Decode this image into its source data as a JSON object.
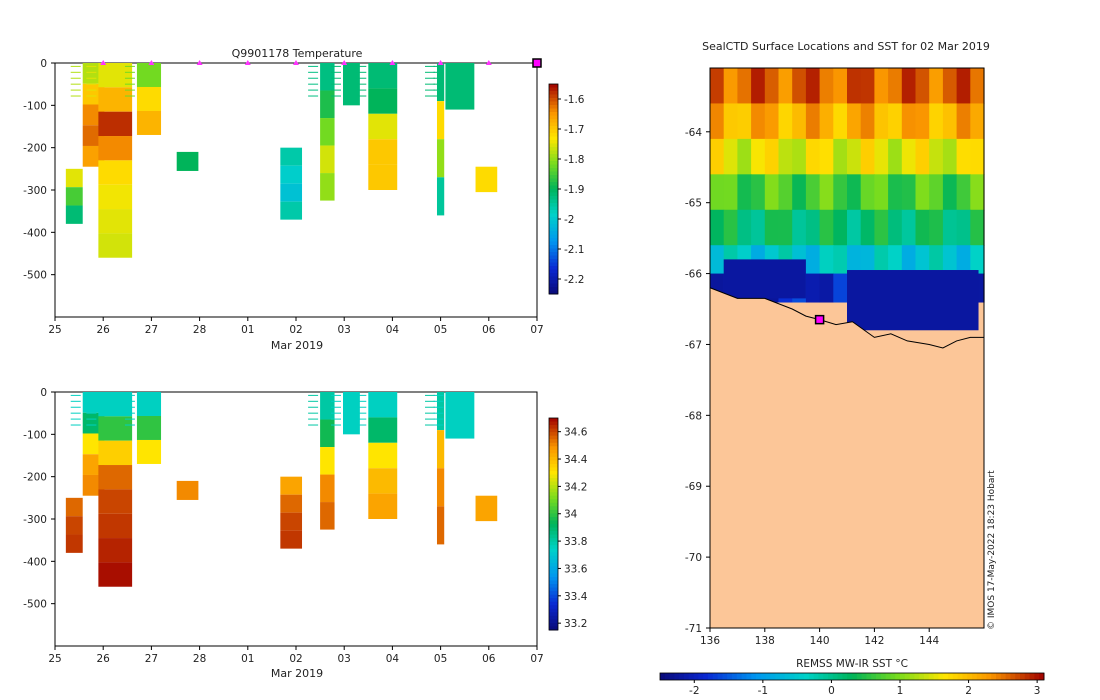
{
  "chart_data": [
    {
      "type": "heatmap",
      "title": "Q9901178  Temperature",
      "xlabel": "Mar 2019",
      "ylabel": "",
      "x_ticks": [
        "25",
        "26",
        "27",
        "28",
        "01",
        "02",
        "03",
        "04",
        "05",
        "06",
        "07"
      ],
      "x_range_days": [
        0,
        10
      ],
      "y_ticks": [
        0,
        -100,
        -200,
        -300,
        -400,
        -500
      ],
      "ylim": [
        -600,
        0
      ],
      "colorbar": {
        "ticks": [
          -1.6,
          -1.7,
          -1.8,
          -1.9,
          -2,
          -2.1,
          -2.2
        ],
        "range": [
          -2.25,
          -1.55
        ]
      },
      "surface_markers_day": [
        1,
        2,
        3,
        4,
        5,
        6,
        7,
        8,
        9,
        10
      ],
      "current_location_day": 10,
      "profiles": [
        {
          "day": 0.4,
          "width": 0.35,
          "depth": 380,
          "top": 250,
          "values": [
            -1.75,
            -1.85,
            -1.92
          ]
        },
        {
          "day": 0.8,
          "width": 0.45,
          "depth": 245,
          "top": 0,
          "values": [
            -1.78,
            -1.7,
            -1.64,
            -1.62,
            -1.66
          ]
        },
        {
          "day": 1.25,
          "width": 0.7,
          "depth": 460,
          "top": 0,
          "values": [
            -1.75,
            -1.68,
            -1.58,
            -1.64,
            -1.72,
            -1.74,
            -1.75,
            -1.76
          ]
        },
        {
          "day": 1.95,
          "width": 0.5,
          "depth": 170,
          "top": 0,
          "values": [
            -1.82,
            -1.72,
            -1.68
          ]
        },
        {
          "day": 2.75,
          "width": 0.45,
          "depth": 255,
          "top": 210,
          "values": [
            -1.9
          ]
        },
        {
          "day": 4.9,
          "width": 0.45,
          "depth": 370,
          "top": 200,
          "values": [
            -1.96,
            -1.99,
            -2.01,
            -1.96
          ]
        },
        {
          "day": 5.65,
          "width": 0.3,
          "depth": 325,
          "top": 0,
          "values": [
            -1.93,
            -1.88,
            -1.82,
            -1.76,
            -1.8
          ]
        },
        {
          "day": 6.15,
          "width": 0.35,
          "depth": 100,
          "top": 0,
          "values": [
            -1.92
          ]
        },
        {
          "day": 6.8,
          "width": 0.6,
          "depth": 300,
          "top": 0,
          "values": [
            -1.92,
            -1.9,
            -1.75,
            -1.7,
            -1.7
          ]
        },
        {
          "day": 8.0,
          "width": 0.15,
          "depth": 360,
          "top": 0,
          "values": [
            -1.92,
            -1.72,
            -1.8,
            -1.95
          ]
        },
        {
          "day": 8.4,
          "width": 0.6,
          "depth": 110,
          "top": 0,
          "values": [
            -1.92
          ]
        },
        {
          "day": 8.95,
          "width": 0.45,
          "depth": 305,
          "top": 245,
          "values": [
            -1.72
          ]
        }
      ]
    },
    {
      "type": "heatmap",
      "title": "",
      "xlabel": "Mar 2019",
      "ylabel": "",
      "x_ticks": [
        "25",
        "26",
        "27",
        "28",
        "01",
        "02",
        "03",
        "04",
        "05",
        "06",
        "07"
      ],
      "x_range_days": [
        0,
        10
      ],
      "y_ticks": [
        0,
        -100,
        -200,
        -300,
        -400,
        -500
      ],
      "ylim": [
        -600,
        0
      ],
      "colorbar": {
        "ticks": [
          34.6,
          34.4,
          34.2,
          34,
          33.8,
          33.6,
          33.4,
          33.2
        ],
        "range": [
          33.15,
          34.7
        ]
      },
      "profiles": [
        {
          "day": 0.4,
          "width": 0.35,
          "depth": 380,
          "top": 250,
          "values": [
            34.55,
            34.6,
            34.62
          ]
        },
        {
          "day": 0.8,
          "width": 0.45,
          "depth": 245,
          "top": 0,
          "values": [
            33.75,
            33.9,
            34.3,
            34.45,
            34.5
          ]
        },
        {
          "day": 1.25,
          "width": 0.7,
          "depth": 460,
          "top": 0,
          "values": [
            33.75,
            34.0,
            34.35,
            34.55,
            34.6,
            34.62,
            34.65,
            34.68
          ]
        },
        {
          "day": 1.95,
          "width": 0.5,
          "depth": 170,
          "top": 0,
          "values": [
            33.75,
            34.0,
            34.3
          ]
        },
        {
          "day": 2.75,
          "width": 0.45,
          "depth": 255,
          "top": 210,
          "values": [
            34.5
          ]
        },
        {
          "day": 4.9,
          "width": 0.45,
          "depth": 370,
          "top": 200,
          "values": [
            34.45,
            34.55,
            34.6,
            34.62
          ]
        },
        {
          "day": 5.65,
          "width": 0.3,
          "depth": 325,
          "top": 0,
          "values": [
            33.8,
            33.95,
            34.3,
            34.5,
            34.55
          ]
        },
        {
          "day": 6.15,
          "width": 0.35,
          "depth": 100,
          "top": 0,
          "values": [
            33.75
          ]
        },
        {
          "day": 6.8,
          "width": 0.6,
          "depth": 300,
          "top": 0,
          "values": [
            33.75,
            33.9,
            34.3,
            34.4,
            34.45
          ]
        },
        {
          "day": 8.0,
          "width": 0.15,
          "depth": 360,
          "top": 0,
          "values": [
            33.8,
            34.4,
            34.5,
            34.55
          ]
        },
        {
          "day": 8.4,
          "width": 0.6,
          "depth": 110,
          "top": 0,
          "values": [
            33.75
          ]
        },
        {
          "day": 8.95,
          "width": 0.45,
          "depth": 305,
          "top": 245,
          "values": [
            34.45
          ]
        }
      ]
    },
    {
      "type": "heatmap",
      "title": "SealCTD Surface Locations and SST for 02 Mar 2019",
      "xlabel": "",
      "ylabel": "",
      "x_ticks": [
        136,
        138,
        140,
        142,
        144
      ],
      "y_ticks": [
        -64,
        -65,
        -66,
        -67,
        -68,
        -69,
        -70,
        -71
      ],
      "xlim": [
        136,
        146
      ],
      "ylim": [
        -71,
        -63.1
      ],
      "colorbar": {
        "label": "REMSS MW-IR SST °C",
        "ticks": [
          -2,
          -1,
          0,
          1,
          2,
          3
        ],
        "range": [
          -2.5,
          3.1
        ]
      },
      "sst_bands": [
        {
          "lat_top": -63.1,
          "lat_bottom": -63.6,
          "sst": 2.6
        },
        {
          "lat_top": -63.6,
          "lat_bottom": -64.1,
          "sst": 2.1
        },
        {
          "lat_top": -64.1,
          "lat_bottom": -64.6,
          "sst": 1.5
        },
        {
          "lat_top": -64.6,
          "lat_bottom": -65.1,
          "sst": 0.7
        },
        {
          "lat_top": -65.1,
          "lat_bottom": -65.6,
          "sst": 0.2
        },
        {
          "lat_top": -65.6,
          "lat_bottom": -66.0,
          "sst": -0.5
        },
        {
          "lat_top": -66.0,
          "lat_bottom": -66.4,
          "sst": -1.9
        }
      ],
      "cold_patches": [
        {
          "lon_min": 136.5,
          "lon_max": 139.5,
          "lat_top": -65.8,
          "lat_bottom": -66.35,
          "sst": -2.2
        },
        {
          "lon_min": 141.0,
          "lon_max": 145.8,
          "lat_top": -65.95,
          "lat_bottom": -66.8,
          "sst": -2.2
        }
      ],
      "coast": [
        [
          136,
          -66.2
        ],
        [
          137,
          -66.35
        ],
        [
          138,
          -66.35
        ],
        [
          139,
          -66.5
        ],
        [
          139.5,
          -66.6
        ],
        [
          140,
          -66.65
        ],
        [
          140.6,
          -66.72
        ],
        [
          141.2,
          -66.68
        ],
        [
          142,
          -66.9
        ],
        [
          142.6,
          -66.85
        ],
        [
          143.2,
          -66.95
        ],
        [
          144,
          -67.0
        ],
        [
          144.5,
          -67.05
        ],
        [
          145,
          -66.95
        ],
        [
          145.5,
          -66.9
        ],
        [
          146,
          -66.9
        ]
      ],
      "seal_location": {
        "lon": 140.0,
        "lat": -66.65
      }
    }
  ],
  "credit": "© IMOS 17-May-2022 18:23 Hobart",
  "colors": {
    "land": "#fcc698",
    "marker": "#ff33ff",
    "location": "#ff00ff"
  }
}
